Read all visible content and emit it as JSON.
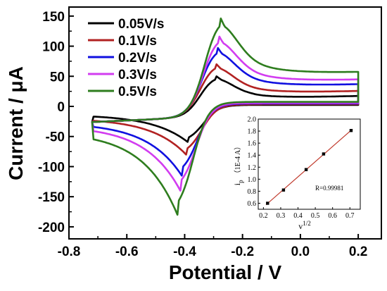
{
  "chart_data": [
    {
      "type": "line",
      "title": "",
      "xlabel": "Potential / V",
      "ylabel": "Current / μA",
      "xlim": [
        -0.8,
        0.28
      ],
      "ylim": [
        -220,
        165
      ],
      "xticks": [
        "-0.8",
        "-0.6",
        "-0.4",
        "-0.2",
        "0.0",
        "0.2"
      ],
      "yticks": [
        "150",
        "100",
        "50",
        "0",
        "-50",
        "-100",
        "-150",
        "-200"
      ],
      "grid": false,
      "legend_position": "top-left",
      "series": [
        {
          "name": "0.05V/s",
          "color": "#000000",
          "scale": 0.41,
          "Epa": -0.29,
          "Epc": -0.39,
          "ipa": 50,
          "ipc": -59
        },
        {
          "name": "0.1V/s",
          "color": "#b22222",
          "scale": 0.58,
          "Epa": -0.29,
          "Epc": -0.395,
          "ipa": 70,
          "ipc": -80
        },
        {
          "name": "0.2V/s",
          "color": "#1010e0",
          "scale": 0.8,
          "Epa": -0.285,
          "Epc": -0.41,
          "ipa": 97,
          "ipc": -115
        },
        {
          "name": "0.3V/s",
          "color": "#d23cf0",
          "scale": 0.95,
          "Epa": -0.28,
          "Epc": -0.415,
          "ipa": 116,
          "ipc": -140
        },
        {
          "name": "0.5V/s",
          "color": "#2e7d1e",
          "scale": 1.25,
          "Epa": -0.275,
          "Epc": -0.425,
          "ipa": 146,
          "ipc": -180
        }
      ]
    },
    {
      "type": "scatter",
      "title": "",
      "xlabel": "v",
      "xlabel_sup": "1/2",
      "ylabel": "i",
      "ylabel_sub": "p",
      "ylabel_rest": "（1E-4 A）",
      "annotation": "R=0.99981",
      "xlim": [
        0.17,
        0.76
      ],
      "ylim": [
        0.5,
        2.0
      ],
      "xticks": [
        "0.2",
        "0.3",
        "0.4",
        "0.5",
        "0.6",
        "0.7"
      ],
      "yticks": [
        "0.6",
        "0.8",
        "1.0",
        "1.2",
        "1.4",
        "1.6",
        "1.8",
        "2.0"
      ],
      "x": [
        0.224,
        0.316,
        0.447,
        0.548,
        0.707
      ],
      "y": [
        0.6,
        0.82,
        1.16,
        1.42,
        1.81
      ],
      "fit_color": "#c0392b"
    }
  ]
}
